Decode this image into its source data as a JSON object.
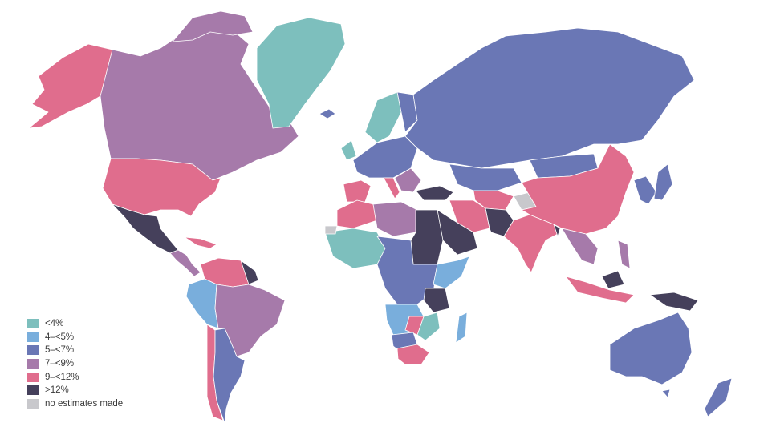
{
  "colors": {
    "lt4": "#7dbfbd",
    "4to5": "#79aedc",
    "5to7": "#6a77b5",
    "7to9": "#a67aaa",
    "9to12": "#e06d8d",
    "gt12": "#45405b",
    "none": "#c8c8cc",
    "ocean": "#ffffff"
  },
  "legend": {
    "items": [
      {
        "key": "lt4",
        "label": "<4%"
      },
      {
        "key": "4to5",
        "label": "4–<5%"
      },
      {
        "key": "5to7",
        "label": "5–<7%"
      },
      {
        "key": "7to9",
        "label": "7–<9%"
      },
      {
        "key": "9to12",
        "label": "9–<12%"
      },
      {
        "key": "gt12",
        "label": ">12%"
      },
      {
        "key": "none",
        "label": "no estimates made"
      }
    ]
  }
}
